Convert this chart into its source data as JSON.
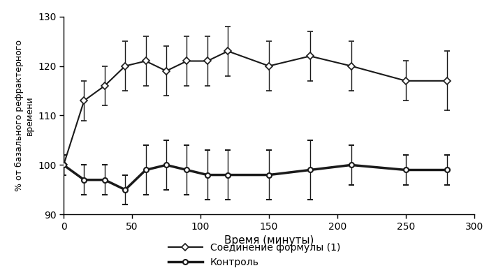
{
  "title": "",
  "xlabel": "Время (минуты)",
  "ylabel": "% от базального рефрактерного\nвремени",
  "xlim": [
    0,
    300
  ],
  "ylim": [
    90,
    130
  ],
  "yticks": [
    90,
    100,
    110,
    120,
    130
  ],
  "xticks": [
    0,
    50,
    100,
    150,
    200,
    250,
    300
  ],
  "compound_x": [
    0,
    15,
    30,
    45,
    60,
    75,
    90,
    105,
    120,
    150,
    180,
    210,
    250,
    280
  ],
  "compound_y": [
    100,
    113,
    116,
    120,
    121,
    119,
    121,
    121,
    123,
    120,
    122,
    120,
    117,
    117
  ],
  "compound_yerr": [
    2,
    4,
    4,
    5,
    5,
    5,
    5,
    5,
    5,
    5,
    5,
    5,
    4,
    6
  ],
  "control_x": [
    0,
    15,
    30,
    45,
    60,
    75,
    90,
    105,
    120,
    150,
    180,
    210,
    250,
    280
  ],
  "control_y": [
    100,
    97,
    97,
    95,
    99,
    100,
    99,
    98,
    98,
    98,
    99,
    100,
    99,
    99
  ],
  "control_yerr": [
    2,
    3,
    3,
    3,
    5,
    5,
    5,
    5,
    5,
    5,
    6,
    4,
    3,
    3
  ],
  "legend_compound": "Соединение формулы (1)",
  "legend_control": "Контроль",
  "line_color": "#1a1a1a",
  "linewidth_thin": 1.5,
  "linewidth_thick": 2.5,
  "markersize": 5,
  "capsize": 3,
  "elinewidth": 1.0
}
